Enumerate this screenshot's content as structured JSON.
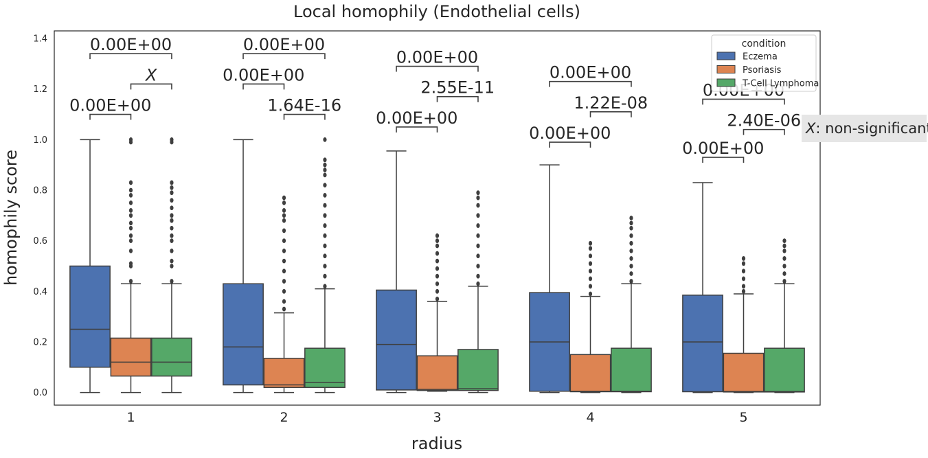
{
  "chart_data": {
    "type": "box",
    "title": "Local homophily (Endothelial cells)",
    "xlabel": "radius",
    "ylabel": "homophily score",
    "ylim": [
      -0.05,
      1.43
    ],
    "yticks": [
      "0.0",
      "0.2",
      "0.4",
      "0.6",
      "0.8",
      "1.0",
      "1.2",
      "1.4"
    ],
    "categories": [
      "1",
      "2",
      "3",
      "4",
      "5"
    ],
    "legend": {
      "title": "condition",
      "position": "top-right"
    },
    "grid": false,
    "series": [
      {
        "name": "Eczema",
        "color": "#4c72b0",
        "boxes": [
          {
            "whislo": 0.0,
            "q1": 0.1,
            "med": 0.25,
            "q3": 0.5,
            "whishi": 1.0,
            "fliers": []
          },
          {
            "whislo": 0.0,
            "q1": 0.03,
            "med": 0.18,
            "q3": 0.43,
            "whishi": 1.0,
            "fliers": []
          },
          {
            "whislo": 0.0,
            "q1": 0.01,
            "med": 0.19,
            "q3": 0.405,
            "whishi": 0.955,
            "fliers": []
          },
          {
            "whislo": 0.0,
            "q1": 0.005,
            "med": 0.2,
            "q3": 0.395,
            "whishi": 0.9,
            "fliers": []
          },
          {
            "whislo": 0.0,
            "q1": 0.003,
            "med": 0.2,
            "q3": 0.385,
            "whishi": 0.83,
            "fliers": []
          }
        ]
      },
      {
        "name": "Psoriasis",
        "color": "#dd8452",
        "boxes": [
          {
            "whislo": 0.0,
            "q1": 0.065,
            "med": 0.12,
            "q3": 0.215,
            "whishi": 0.43,
            "fliers": [
              0.44,
              0.5,
              0.51,
              0.56,
              0.6,
              0.62,
              0.65,
              0.67,
              0.7,
              0.72,
              0.75,
              0.78,
              0.8,
              0.83,
              0.99,
              1.0
            ]
          },
          {
            "whislo": 0.0,
            "q1": 0.02,
            "med": 0.03,
            "q3": 0.135,
            "whishi": 0.315,
            "fliers": [
              0.33,
              0.36,
              0.4,
              0.44,
              0.48,
              0.52,
              0.56,
              0.6,
              0.64,
              0.68,
              0.7,
              0.72,
              0.75,
              0.77
            ]
          },
          {
            "whislo": 0.005,
            "q1": 0.008,
            "med": 0.012,
            "q3": 0.145,
            "whishi": 0.36,
            "fliers": [
              0.37,
              0.4,
              0.43,
              0.46,
              0.49,
              0.52,
              0.55,
              0.58,
              0.6,
              0.62
            ]
          },
          {
            "whislo": 0.0,
            "q1": 0.003,
            "med": 0.005,
            "q3": 0.15,
            "whishi": 0.38,
            "fliers": [
              0.39,
              0.42,
              0.45,
              0.48,
              0.51,
              0.54,
              0.57,
              0.59
            ]
          },
          {
            "whislo": 0.0,
            "q1": 0.002,
            "med": 0.004,
            "q3": 0.155,
            "whishi": 0.39,
            "fliers": [
              0.4,
              0.42,
              0.45,
              0.48,
              0.51,
              0.53
            ]
          }
        ]
      },
      {
        "name": "T-Cell Lymphoma",
        "color": "#55a868",
        "boxes": [
          {
            "whislo": 0.0,
            "q1": 0.065,
            "med": 0.12,
            "q3": 0.215,
            "whishi": 0.43,
            "fliers": [
              0.44,
              0.5,
              0.52,
              0.56,
              0.6,
              0.62,
              0.65,
              0.68,
              0.7,
              0.73,
              0.76,
              0.79,
              0.81,
              0.83,
              0.99,
              1.0
            ]
          },
          {
            "whislo": 0.0,
            "q1": 0.02,
            "med": 0.04,
            "q3": 0.175,
            "whishi": 0.41,
            "fliers": [
              0.42,
              0.46,
              0.5,
              0.54,
              0.58,
              0.62,
              0.66,
              0.7,
              0.74,
              0.78,
              0.82,
              0.86,
              0.88,
              0.9,
              0.92,
              1.0
            ]
          },
          {
            "whislo": 0.0,
            "q1": 0.008,
            "med": 0.015,
            "q3": 0.17,
            "whishi": 0.42,
            "fliers": [
              0.43,
              0.46,
              0.5,
              0.54,
              0.58,
              0.62,
              0.66,
              0.7,
              0.74,
              0.77,
              0.79
            ]
          },
          {
            "whislo": 0.0,
            "q1": 0.003,
            "med": 0.005,
            "q3": 0.175,
            "whishi": 0.43,
            "fliers": [
              0.44,
              0.47,
              0.5,
              0.53,
              0.56,
              0.59,
              0.62,
              0.65,
              0.67,
              0.69
            ]
          },
          {
            "whislo": 0.0,
            "q1": 0.002,
            "med": 0.004,
            "q3": 0.175,
            "whishi": 0.43,
            "fliers": [
              0.44,
              0.47,
              0.5,
              0.53,
              0.56,
              0.58,
              0.6
            ]
          }
        ]
      }
    ],
    "annotations": [
      {
        "group": "1",
        "from": "Eczema",
        "to": "Psoriasis",
        "y": 1.1,
        "text": "0.00E+00"
      },
      {
        "group": "1",
        "from": "Psoriasis",
        "to": "T-Cell Lymphoma",
        "y": 1.22,
        "text": "X",
        "italic": true
      },
      {
        "group": "1",
        "from": "Eczema",
        "to": "T-Cell Lymphoma",
        "y": 1.34,
        "text": "0.00E+00"
      },
      {
        "group": "2",
        "from": "Eczema",
        "to": "Psoriasis",
        "y": 1.22,
        "text": "0.00E+00"
      },
      {
        "group": "2",
        "from": "Psoriasis",
        "to": "T-Cell Lymphoma",
        "y": 1.1,
        "text": "1.64E-16"
      },
      {
        "group": "2",
        "from": "Eczema",
        "to": "T-Cell Lymphoma",
        "y": 1.34,
        "text": "0.00E+00"
      },
      {
        "group": "3",
        "from": "Eczema",
        "to": "Psoriasis",
        "y": 1.05,
        "text": "0.00E+00"
      },
      {
        "group": "3",
        "from": "Psoriasis",
        "to": "T-Cell Lymphoma",
        "y": 1.17,
        "text": "2.55E-11"
      },
      {
        "group": "3",
        "from": "Eczema",
        "to": "T-Cell Lymphoma",
        "y": 1.29,
        "text": "0.00E+00"
      },
      {
        "group": "4",
        "from": "Eczema",
        "to": "Psoriasis",
        "y": 0.99,
        "text": "0.00E+00"
      },
      {
        "group": "4",
        "from": "Psoriasis",
        "to": "T-Cell Lymphoma",
        "y": 1.11,
        "text": "1.22E-08"
      },
      {
        "group": "4",
        "from": "Eczema",
        "to": "T-Cell Lymphoma",
        "y": 1.23,
        "text": "0.00E+00"
      },
      {
        "group": "5",
        "from": "Eczema",
        "to": "Psoriasis",
        "y": 0.93,
        "text": "0.00E+00"
      },
      {
        "group": "5",
        "from": "Psoriasis",
        "to": "T-Cell Lymphoma",
        "y": 1.04,
        "text": "2.40E-06"
      },
      {
        "group": "5",
        "from": "Eczema",
        "to": "T-Cell Lymphoma",
        "y": 1.16,
        "text": "0.00E+00"
      }
    ],
    "note": {
      "symbol": "X",
      "text": ": non-significant"
    }
  }
}
